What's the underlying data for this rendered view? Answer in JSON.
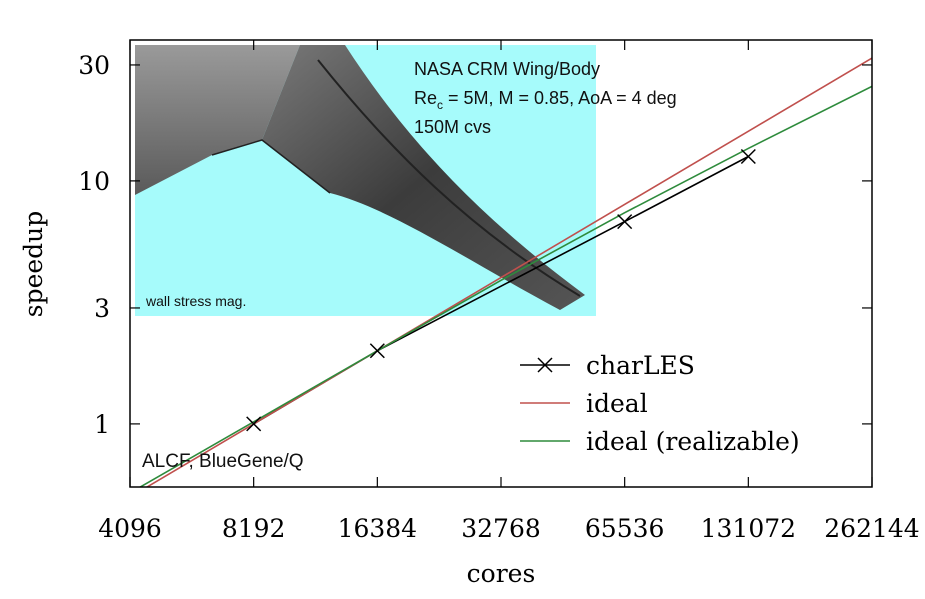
{
  "chart_data": {
    "type": "line",
    "xlabel": "cores",
    "ylabel": "speedup",
    "x_scale": "log2",
    "y_scale": "log",
    "xlim": [
      4096,
      262144
    ],
    "ylim": [
      0.55,
      38
    ],
    "x_ticks": [
      4096,
      8192,
      16384,
      32768,
      65536,
      131072,
      262144
    ],
    "x_tick_labels": [
      "4096",
      "8192",
      "16384",
      "32768",
      "65536",
      "131072",
      "262144"
    ],
    "y_ticks": [
      1,
      3,
      10,
      30
    ],
    "y_tick_labels": [
      "1",
      "3",
      "10",
      "30"
    ],
    "legend_position": "bottom-right",
    "grid": false,
    "series": [
      {
        "name": "charLES",
        "color": "#000000",
        "marker": "x",
        "points": [
          [
            8192,
            1.0
          ],
          [
            16384,
            2.0
          ],
          [
            65536,
            6.8
          ],
          [
            131072,
            12.6
          ]
        ]
      },
      {
        "name": "ideal",
        "color": "#c0504d",
        "marker": "none",
        "points": [
          [
            4096,
            0.5
          ],
          [
            262144,
            32.0
          ]
        ]
      },
      {
        "name": "ideal (realizable)",
        "color": "#2e8b3c",
        "marker": "none",
        "points": [
          [
            4096,
            0.52
          ],
          [
            8192,
            1.02
          ],
          [
            16384,
            2.0
          ],
          [
            32768,
            3.9
          ],
          [
            65536,
            7.4
          ],
          [
            131072,
            13.6
          ],
          [
            262144,
            24.5
          ]
        ]
      }
    ],
    "inset": {
      "description_lines": [
        "NASA CRM Wing/Body",
        "Re",
        "c",
        " = 5M, M = 0.85, AoA = 4 deg",
        "150M cvs"
      ],
      "caption": "wall stress mag.",
      "background": "#a6fbfb"
    },
    "annotation": "ALCF, BlueGene/Q"
  }
}
